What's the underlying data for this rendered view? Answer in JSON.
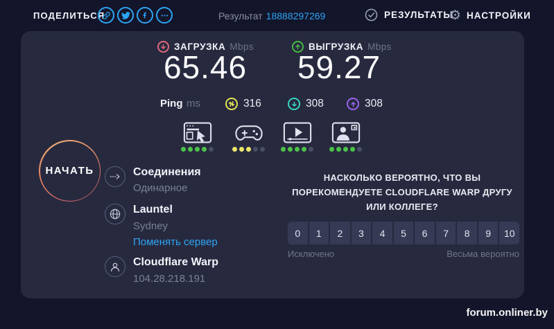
{
  "topbar": {
    "share_label": "ПОДЕЛИТЬСЯ",
    "result_label": "Результат",
    "result_id": "18888297269",
    "results_label": "РЕЗУЛЬТАТЫ",
    "settings_label": "НАСТРОЙКИ"
  },
  "speeds": {
    "download": {
      "label": "ЗАГРУЗКА",
      "unit": "Mbps",
      "value": "65.46"
    },
    "upload": {
      "label": "ВЫГРУЗКА",
      "unit": "Mbps",
      "value": "59.27"
    }
  },
  "ping": {
    "label": "Ping",
    "unit": "ms",
    "idle": "316",
    "download": "308",
    "upload": "308"
  },
  "activities": [
    {
      "name": "browsing",
      "icon": "browser-icon",
      "dots": [
        "green",
        "green",
        "green",
        "green",
        "gray"
      ]
    },
    {
      "name": "gaming",
      "icon": "gamepad-icon",
      "dots": [
        "yellow",
        "yellow",
        "yellow",
        "gray",
        "gray"
      ]
    },
    {
      "name": "streaming",
      "icon": "video-player-icon",
      "dots": [
        "green",
        "green",
        "green",
        "green",
        "gray"
      ]
    },
    {
      "name": "video-chat",
      "icon": "video-chat-icon",
      "dots": [
        "green",
        "green",
        "green",
        "green",
        "gray"
      ]
    }
  ],
  "start_button_label": "НАЧАТЬ",
  "connection": {
    "connections_title": "Соединения",
    "connections_value": "Одинарное",
    "server_name": "Launtel",
    "server_location": "Sydney",
    "change_server_label": "Поменять сервер",
    "provider_name": "Cloudflare Warp",
    "provider_ip": "104.28.218.191"
  },
  "survey": {
    "question": "НАСКОЛЬКО ВЕРОЯТНО, ЧТО ВЫ ПОРЕКОМЕНДУЕТЕ CLOUDFLARE WARP ДРУГУ ИЛИ КОЛЛЕГЕ?",
    "scale": [
      "0",
      "1",
      "2",
      "3",
      "4",
      "5",
      "6",
      "7",
      "8",
      "9",
      "10"
    ],
    "min_label": "Исключено",
    "max_label": "Весьма вероятно"
  },
  "watermark": "forum.onliner.by",
  "colors": {
    "accent_blue": "#2da5f5",
    "download_red": "#e0697b",
    "upload_green": "#46b943",
    "latency_yellow": "#e6e24e",
    "ping_down_teal": "#35d4c0",
    "ping_up_purple": "#9a63ee",
    "dot_green": "#4cc348",
    "dot_yellow": "#ece76a",
    "dot_gray": "#4a4e66",
    "panel_bg": "#272a3f",
    "page_bg": "#13152a"
  }
}
